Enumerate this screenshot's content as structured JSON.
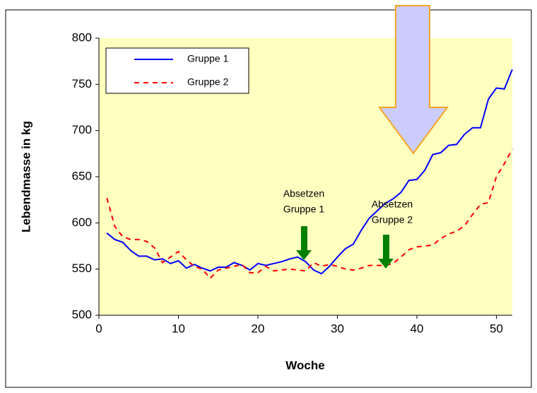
{
  "chart_data": {
    "type": "line",
    "xlabel": "Woche",
    "ylabel": "Lebendmasse in kg",
    "x": [
      1,
      2,
      3,
      4,
      5,
      6,
      7,
      8,
      9,
      10,
      11,
      12,
      13,
      14,
      15,
      16,
      17,
      18,
      19,
      20,
      21,
      22,
      23,
      24,
      25,
      26,
      27,
      28,
      29,
      30,
      31,
      32,
      33,
      34,
      35,
      36,
      37,
      38,
      39,
      40,
      41,
      42,
      43,
      44,
      45,
      46,
      47,
      48,
      49,
      50,
      51,
      52
    ],
    "series": [
      {
        "name": "Gruppe 1",
        "color": "#0000ff",
        "dash": false,
        "values": [
          589,
          582,
          579,
          570,
          564,
          564,
          560,
          561,
          556,
          559,
          551,
          555,
          551,
          548,
          552,
          552,
          557,
          554,
          549,
          556,
          554,
          556,
          558,
          561,
          563,
          558,
          549,
          545,
          553,
          563,
          572,
          577,
          592,
          605,
          613,
          621,
          626,
          633,
          646,
          647,
          657,
          674,
          676,
          684,
          685,
          696,
          703,
          703,
          734,
          746,
          745,
          766
        ]
      },
      {
        "name": "Gruppe 2",
        "color": "#ff0000",
        "dash": true,
        "values": [
          627,
          596,
          585,
          582,
          582,
          580,
          573,
          557,
          563,
          569,
          560,
          553,
          550,
          540,
          549,
          551,
          553,
          555,
          546,
          546,
          553,
          548,
          549,
          550,
          549,
          548,
          557,
          553,
          555,
          553,
          550,
          549,
          551,
          554,
          554,
          554,
          556,
          563,
          571,
          574,
          575,
          576,
          583,
          588,
          591,
          597,
          609,
          620,
          622,
          650,
          664,
          680
        ]
      }
    ],
    "xlim": [
      0,
      52
    ],
    "xticks": [
      0,
      10,
      20,
      30,
      40,
      50
    ],
    "ylim": [
      500,
      800
    ],
    "yticks": [
      500,
      550,
      600,
      650,
      700,
      750,
      800
    ],
    "grid": false,
    "legend": "upper left",
    "annotations": [
      [
        "Absetzen",
        "Gruppe 1"
      ],
      [
        "Absetzen",
        "Gruppe 2"
      ]
    ]
  }
}
